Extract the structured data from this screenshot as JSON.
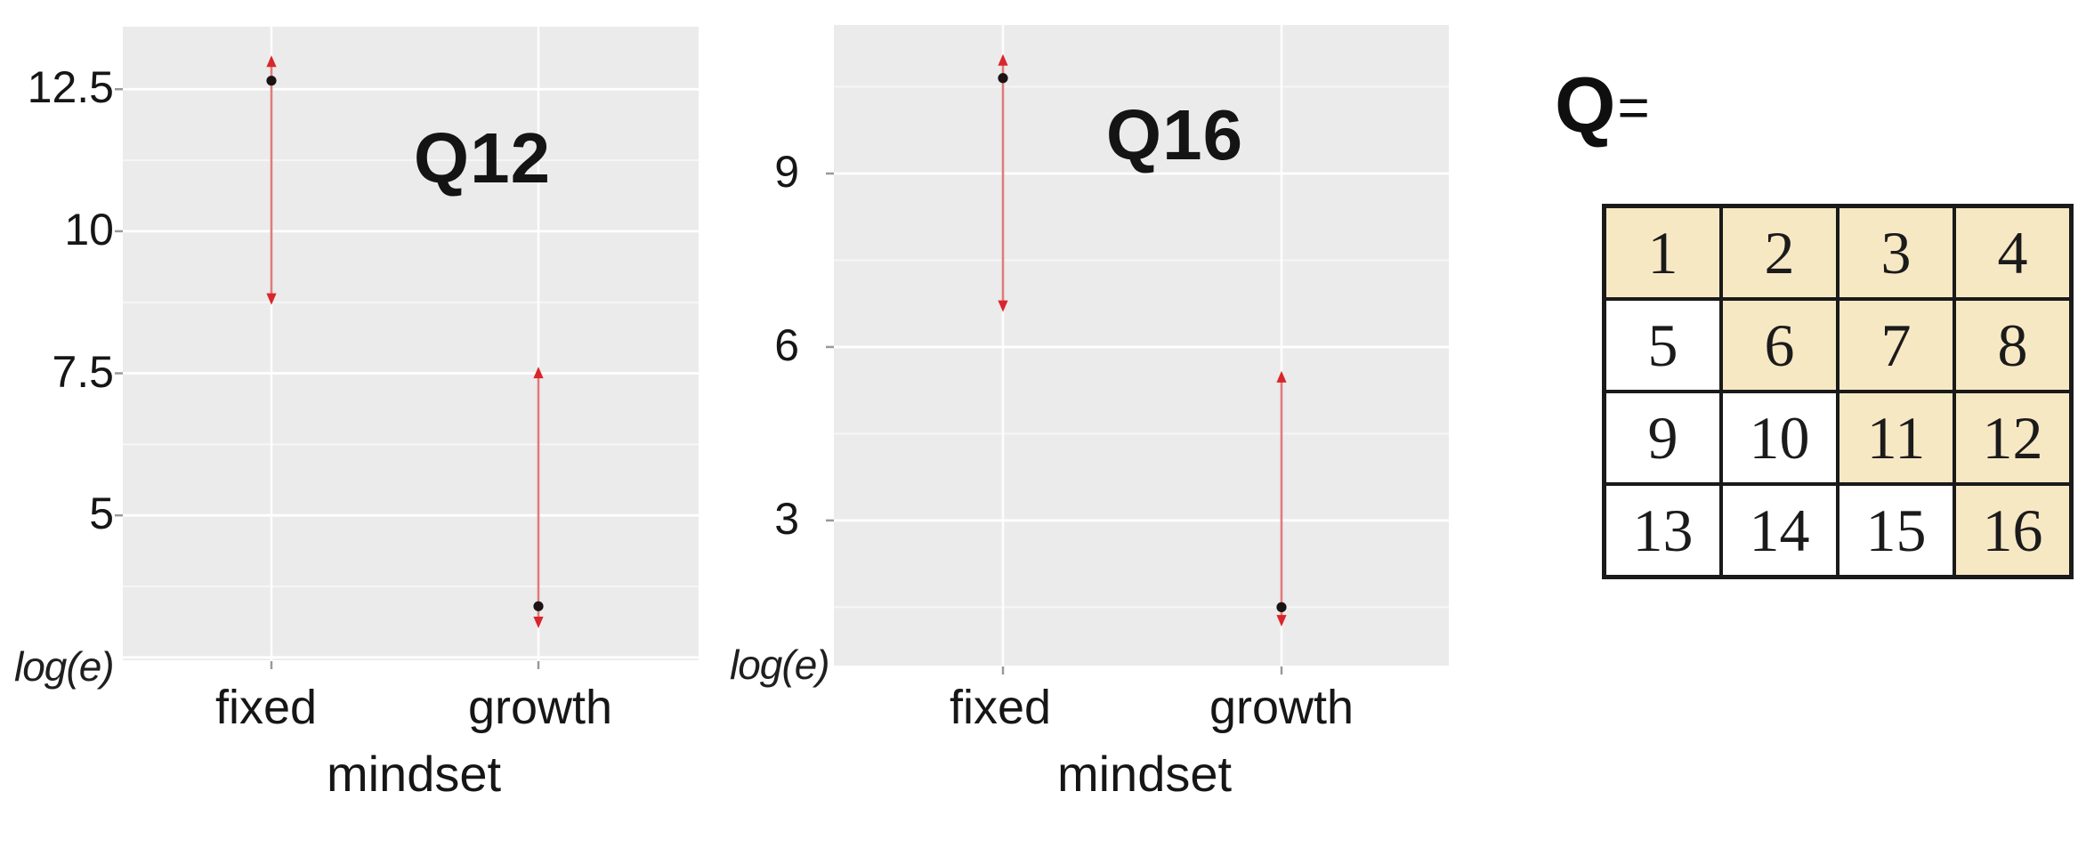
{
  "colors": {
    "panel_bg": "#EBEBEB",
    "grid_line": "#FFFFFF",
    "tick_mark": "#999999",
    "arrow_stem": "#E07B7B",
    "arrow_head": "#D9252B",
    "point": "#1C1315",
    "text": "#1A1A1A",
    "table_highlight": "#F7E8C4",
    "table_plain": "#FFFFFF",
    "table_border": "#1A1A1A"
  },
  "chart_data": [
    {
      "type": "errorbar",
      "title": "Q12",
      "corner_label": "log(e)",
      "xlabel": "mindset",
      "categories": [
        "fixed",
        "growth"
      ],
      "ylim": [
        2.45,
        13.6
      ],
      "yticks": [
        12.5,
        10,
        7.5,
        5
      ],
      "ytick_labels": [
        "12.5",
        "10",
        "7.5",
        "5"
      ],
      "grid": "major+minor white on gray panel",
      "legend": "none",
      "series": [
        {
          "category": "fixed",
          "point": 12.65,
          "arrow_high": 13.08,
          "arrow_low": 8.72
        },
        {
          "category": "growth",
          "point": 3.4,
          "arrow_high": 7.6,
          "arrow_low": 3.03
        }
      ]
    },
    {
      "type": "errorbar",
      "title": "Q16",
      "corner_label": "log(e)",
      "xlabel": "mindset",
      "categories": [
        "fixed",
        "growth"
      ],
      "ylim": [
        0.49,
        11.57
      ],
      "yticks": [
        9,
        6,
        3
      ],
      "ytick_labels": [
        "9",
        "6",
        "3"
      ],
      "grid": "major+minor white on gray panel",
      "legend": "none",
      "series": [
        {
          "category": "fixed",
          "point": 10.65,
          "arrow_high": 11.05,
          "arrow_low": 6.62
        },
        {
          "category": "growth",
          "point": 1.5,
          "arrow_high": 5.57,
          "arrow_low": 1.18
        }
      ]
    },
    {
      "type": "table",
      "label_q": "Q",
      "label_eq": "=",
      "rows": [
        [
          "1",
          "2",
          "3",
          "4"
        ],
        [
          "5",
          "6",
          "7",
          "8"
        ],
        [
          "9",
          "10",
          "11",
          "12"
        ],
        [
          "13",
          "14",
          "15",
          "16"
        ]
      ],
      "highlighted": [
        [
          1,
          1,
          1,
          1
        ],
        [
          0,
          1,
          1,
          1
        ],
        [
          0,
          0,
          1,
          1
        ],
        [
          0,
          0,
          0,
          1
        ]
      ]
    }
  ]
}
